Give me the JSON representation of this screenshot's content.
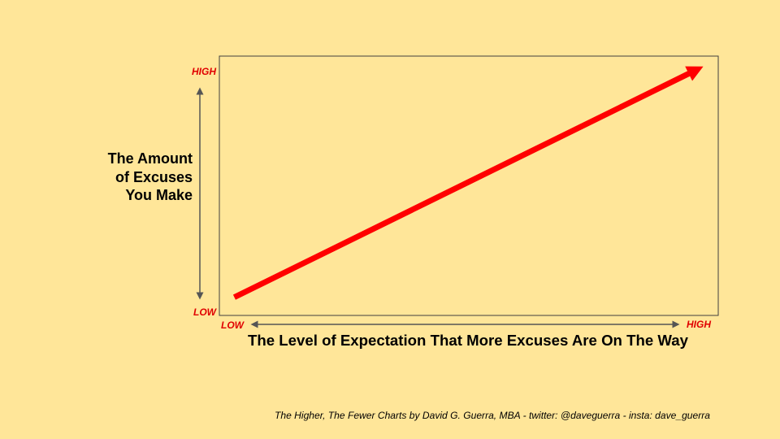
{
  "chart_data": {
    "type": "line",
    "title": "",
    "ylabel_lines": [
      "The Amount",
      "of Excuses",
      "You Make"
    ],
    "xlabel": "The Level of Expectation That More Excuses Are On The Way",
    "x_ticks": {
      "low": "LOW",
      "high": "HIGH"
    },
    "y_ticks": {
      "low": "LOW",
      "high": "HIGH"
    },
    "series": [
      {
        "x": [
          0.03,
          0.97
        ],
        "y": [
          0.07,
          0.96
        ]
      }
    ],
    "xlim": [
      0,
      1
    ],
    "ylim": [
      0,
      1
    ],
    "grid": false,
    "legend": "none",
    "line_color": "#FF0000",
    "tick_color": "#E00000"
  },
  "footer": "The Higher, The Fewer Charts by David G. Guerra, MBA  - twitter:  @daveguerra - insta: dave_guerra"
}
